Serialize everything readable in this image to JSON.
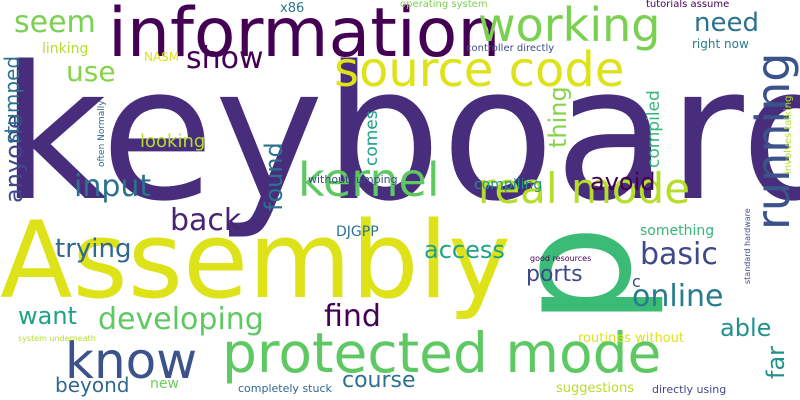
{
  "words": [
    {
      "text": "keyboard",
      "color": "#472d7b",
      "orient": "h"
    },
    {
      "text": "Assembly",
      "color": "#dde318",
      "orient": "h"
    },
    {
      "text": "information",
      "color": "#440154",
      "orient": "h"
    },
    {
      "text": "protected mode",
      "color": "#5ec962",
      "orient": "h"
    },
    {
      "text": "know",
      "color": "#3b528b",
      "orient": "h"
    },
    {
      "text": "source code",
      "color": "#dde318",
      "orient": "h"
    },
    {
      "text": "working",
      "color": "#7ad151",
      "orient": "h"
    },
    {
      "text": "kernel",
      "color": "#5ec962",
      "orient": "h"
    },
    {
      "text": "real mode",
      "color": "#b5de2b",
      "orient": "h"
    },
    {
      "text": "running",
      "color": "#3b528b",
      "orient": "v"
    },
    {
      "text": "p",
      "color": "#3bbb75",
      "orient": "v"
    },
    {
      "text": "seem",
      "color": "#7ad151",
      "orient": "h"
    },
    {
      "text": "developing",
      "color": "#5ec962",
      "orient": "h"
    },
    {
      "text": "online",
      "color": "#287c8e",
      "orient": "h"
    },
    {
      "text": "basic",
      "color": "#3e4989",
      "orient": "h"
    },
    {
      "text": "find",
      "color": "#440154",
      "orient": "h"
    },
    {
      "text": "back",
      "color": "#482475",
      "orient": "h"
    },
    {
      "text": "input",
      "color": "#2c728e",
      "orient": "h"
    },
    {
      "text": "need",
      "color": "#2c728e",
      "orient": "h"
    },
    {
      "text": "show",
      "color": "#440154",
      "orient": "h"
    },
    {
      "text": "access",
      "color": "#1fa187",
      "orient": "h"
    },
    {
      "text": "trying",
      "color": "#31688e",
      "orient": "h"
    },
    {
      "text": "use",
      "color": "#86d549",
      "orient": "h"
    },
    {
      "text": "found",
      "color": "#2c728e",
      "orient": "v"
    },
    {
      "text": "thing",
      "color": "#86d549",
      "orient": "v"
    },
    {
      "text": "anyone",
      "color": "#3e4989",
      "orient": "v"
    },
    {
      "text": "avoid",
      "color": "#440154",
      "orient": "h"
    },
    {
      "text": "able",
      "color": "#21918c",
      "orient": "h"
    },
    {
      "text": "want",
      "color": "#1fa187",
      "orient": "h"
    },
    {
      "text": "far",
      "color": "#21918c",
      "orient": "v"
    },
    {
      "text": "course",
      "color": "#2c728e",
      "orient": "h"
    },
    {
      "text": "ports",
      "color": "#3e4989",
      "orient": "h"
    },
    {
      "text": "beyond",
      "color": "#31688e",
      "orient": "h"
    },
    {
      "text": "stumped",
      "color": "#2c728e",
      "orient": "v"
    },
    {
      "text": "compiled",
      "color": "#35b779",
      "orient": "v"
    },
    {
      "text": "comes",
      "color": "#1fa187",
      "orient": "v"
    },
    {
      "text": "looking",
      "color": "#b5de2b",
      "orient": "h"
    },
    {
      "text": "compiling",
      "color": "#21918c",
      "orient": "h"
    },
    {
      "text": "something",
      "color": "#35b779",
      "orient": "h"
    },
    {
      "text": "DJGPP",
      "color": "#2c728e",
      "orient": "h"
    },
    {
      "text": "new",
      "color": "#6ccd5a",
      "orient": "h"
    },
    {
      "text": "c",
      "color": "#3e4989",
      "orient": "h"
    },
    {
      "text": "suggestions",
      "color": "#b5de2b",
      "orient": "h"
    },
    {
      "text": "routines without",
      "color": "#dde318",
      "orient": "h"
    },
    {
      "text": "linking",
      "color": "#b5de2b",
      "orient": "h"
    },
    {
      "text": "NASM",
      "color": "#dde318",
      "orient": "h"
    },
    {
      "text": "x86",
      "color": "#2c728e",
      "orient": "h"
    },
    {
      "text": "right now",
      "color": "#287c8e",
      "orient": "h"
    },
    {
      "text": "without jumping",
      "color": "#3e4989",
      "orient": "h"
    },
    {
      "text": "completely stuck",
      "color": "#31688e",
      "orient": "h"
    },
    {
      "text": "directly using",
      "color": "#3e4989",
      "orient": "h"
    },
    {
      "text": "operating system",
      "color": "#7ad151",
      "orient": "h"
    },
    {
      "text": "tutorials assume",
      "color": "#440154",
      "orient": "h"
    },
    {
      "text": "controller directly",
      "color": "#3e4989",
      "orient": "h"
    },
    {
      "text": "often Normally",
      "color": "#31688e",
      "orient": "v"
    },
    {
      "text": "good resources",
      "color": "#440154",
      "orient": "h"
    },
    {
      "text": "standard hardware",
      "color": "#3e4989",
      "orient": "v"
    },
    {
      "text": "involves talking",
      "color": "#b5de2b",
      "orient": "v"
    },
    {
      "text": "system underneath",
      "color": "#b5de2b",
      "orient": "h"
    }
  ]
}
